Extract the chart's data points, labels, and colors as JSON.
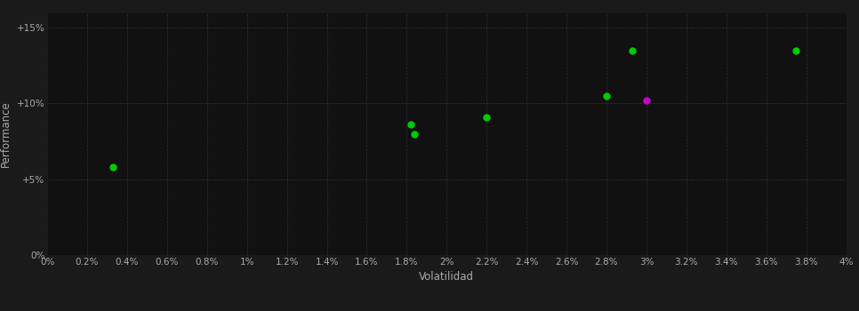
{
  "green_points": [
    [
      0.0033,
      0.058
    ],
    [
      0.0182,
      0.086
    ],
    [
      0.0184,
      0.08
    ],
    [
      0.022,
      0.091
    ],
    [
      0.028,
      0.105
    ],
    [
      0.0293,
      0.135
    ],
    [
      0.0375,
      0.135
    ]
  ],
  "magenta_points": [
    [
      0.03,
      0.102
    ]
  ],
  "green_color": "#00cc00",
  "magenta_color": "#cc00cc",
  "fig_bg_color": "#1a1a1a",
  "plot_bg_color": "#111111",
  "grid_color": "#333333",
  "text_color": "#aaaaaa",
  "xlabel": "Volatilidad",
  "ylabel": "Performance",
  "xlim": [
    0.0,
    0.04
  ],
  "ylim": [
    0.0,
    0.16
  ],
  "xticks": [
    0.0,
    0.002,
    0.004,
    0.006,
    0.008,
    0.01,
    0.012,
    0.014,
    0.016,
    0.018,
    0.02,
    0.022,
    0.024,
    0.026,
    0.028,
    0.03,
    0.032,
    0.034,
    0.036,
    0.038,
    0.04
  ],
  "yticks": [
    0.0,
    0.05,
    0.1,
    0.15
  ],
  "xtick_labels": [
    "0%",
    "0.2%",
    "0.4%",
    "0.6%",
    "0.8%",
    "1%",
    "1.2%",
    "1.4%",
    "1.6%",
    "1.8%",
    "2%",
    "2.2%",
    "2.4%",
    "2.6%",
    "2.8%",
    "3%",
    "3.2%",
    "3.4%",
    "3.6%",
    "3.8%",
    "4%"
  ],
  "ytick_labels": [
    "0%",
    "+5%",
    "+10%",
    "+15%"
  ],
  "marker_size": 6,
  "tick_fontsize": 7.5,
  "label_fontsize": 8.5
}
